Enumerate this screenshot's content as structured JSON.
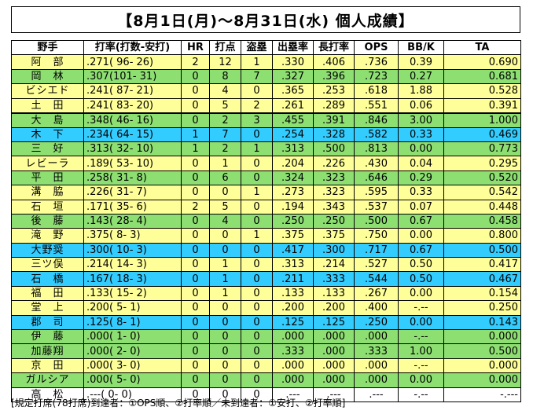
{
  "title": "【8月1日(月)〜8月31日(水) 個人成績】",
  "headers": [
    "野手",
    "打率(打数-安打)",
    "HR",
    "打点",
    "盗塁",
    "出塁率",
    "長打率",
    "OPS",
    "BB/K",
    "TA"
  ],
  "rows": [
    {
      "name": "阿　部",
      "avg": ".271( 96- 26)",
      "hr": "2",
      "rbi": "12",
      "sb": "1",
      "obp": ".330",
      "slg": ".406",
      "ops": ".736",
      "bbk": "0.39",
      "ta": "0.690",
      "color": "yellow"
    },
    {
      "name": "岡　林",
      "avg": ".307(101- 31)",
      "hr": "0",
      "rbi": "8",
      "sb": "7",
      "obp": ".327",
      "slg": ".396",
      "ops": ".723",
      "bbk": "0.27",
      "ta": "0.681",
      "color": "green"
    },
    {
      "name": "ビシエド",
      "avg": ".241( 87- 21)",
      "hr": "0",
      "rbi": "4",
      "sb": "0",
      "obp": ".365",
      "slg": ".253",
      "ops": ".618",
      "bbk": "1.88",
      "ta": "0.528",
      "color": "yellow"
    },
    {
      "name": "土　田",
      "avg": ".241( 83- 20)",
      "hr": "0",
      "rbi": "5",
      "sb": "2",
      "obp": ".261",
      "slg": ".289",
      "ops": ".551",
      "bbk": "0.06",
      "ta": "0.391",
      "color": "yellow"
    },
    {
      "name": "大　島",
      "avg": ".348( 46- 16)",
      "hr": "0",
      "rbi": "2",
      "sb": "3",
      "obp": ".455",
      "slg": ".391",
      "ops": ".846",
      "bbk": "3.00",
      "ta": "1.000",
      "color": "green"
    },
    {
      "name": "木　下",
      "avg": ".234( 64- 15)",
      "hr": "1",
      "rbi": "7",
      "sb": "0",
      "obp": ".254",
      "slg": ".328",
      "ops": ".582",
      "bbk": "0.33",
      "ta": "0.469",
      "color": "cyan"
    },
    {
      "name": "三　好",
      "avg": ".313( 32- 10)",
      "hr": "1",
      "rbi": "2",
      "sb": "1",
      "obp": ".313",
      "slg": ".500",
      "ops": ".813",
      "bbk": "0.00",
      "ta": "0.773",
      "color": "green"
    },
    {
      "name": "レビーラ",
      "avg": ".189( 53- 10)",
      "hr": "0",
      "rbi": "1",
      "sb": "0",
      "obp": ".204",
      "slg": ".226",
      "ops": ".430",
      "bbk": "0.04",
      "ta": "0.295",
      "color": "yellow"
    },
    {
      "name": "平　田",
      "avg": ".258( 31- 8)",
      "hr": "0",
      "rbi": "6",
      "sb": "0",
      "obp": ".324",
      "slg": ".323",
      "ops": ".646",
      "bbk": "0.29",
      "ta": "0.520",
      "color": "green"
    },
    {
      "name": "溝　脇",
      "avg": ".226( 31- 7)",
      "hr": "0",
      "rbi": "0",
      "sb": "1",
      "obp": ".273",
      "slg": ".323",
      "ops": ".595",
      "bbk": "0.33",
      "ta": "0.542",
      "color": "yellow"
    },
    {
      "name": "石　垣",
      "avg": ".171( 35- 6)",
      "hr": "2",
      "rbi": "5",
      "sb": "0",
      "obp": ".194",
      "slg": ".343",
      "ops": ".537",
      "bbk": "0.07",
      "ta": "0.448",
      "color": "yellow"
    },
    {
      "name": "後　藤",
      "avg": ".143( 28- 4)",
      "hr": "0",
      "rbi": "4",
      "sb": "0",
      "obp": ".250",
      "slg": ".250",
      "ops": ".500",
      "bbk": "0.67",
      "ta": "0.458",
      "color": "green"
    },
    {
      "name": "滝　野",
      "avg": ".375( 8- 3)",
      "hr": "0",
      "rbi": "0",
      "sb": "1",
      "obp": ".375",
      "slg": ".375",
      "ops": ".750",
      "bbk": "0.00",
      "ta": "0.800",
      "color": "yellow"
    },
    {
      "name": "大野奨",
      "avg": ".300( 10- 3)",
      "hr": "0",
      "rbi": "0",
      "sb": "0",
      "obp": ".417",
      "slg": ".300",
      "ops": ".717",
      "bbk": "0.67",
      "ta": "0.500",
      "color": "cyan"
    },
    {
      "name": "三ツ俣",
      "avg": ".214( 14- 3)",
      "hr": "0",
      "rbi": "1",
      "sb": "0",
      "obp": ".313",
      "slg": ".214",
      "ops": ".527",
      "bbk": "0.50",
      "ta": "0.417",
      "color": "yellow"
    },
    {
      "name": "石　橋",
      "avg": ".167( 18- 3)",
      "hr": "0",
      "rbi": "1",
      "sb": "0",
      "obp": ".211",
      "slg": ".333",
      "ops": ".544",
      "bbk": "0.50",
      "ta": "0.467",
      "color": "cyan"
    },
    {
      "name": "福　田",
      "avg": ".133( 15- 2)",
      "hr": "0",
      "rbi": "1",
      "sb": "0",
      "obp": ".133",
      "slg": ".133",
      "ops": ".267",
      "bbk": "0.00",
      "ta": "0.154",
      "color": "yellow"
    },
    {
      "name": "堂　上",
      "avg": ".200( 5- 1)",
      "hr": "0",
      "rbi": "0",
      "sb": "0",
      "obp": ".200",
      "slg": ".200",
      "ops": ".400",
      "bbk": "-.--",
      "ta": "0.250",
      "color": "yellow"
    },
    {
      "name": "郡　司",
      "avg": ".125( 8- 1)",
      "hr": "0",
      "rbi": "0",
      "sb": "0",
      "obp": ".125",
      "slg": ".125",
      "ops": ".250",
      "bbk": "0.00",
      "ta": "0.143",
      "color": "cyan"
    },
    {
      "name": "伊　藤",
      "avg": ".000( 1- 0)",
      "hr": "0",
      "rbi": "0",
      "sb": "0",
      "obp": ".000",
      "slg": ".000",
      "ops": ".000",
      "bbk": "-.--",
      "ta": "0.000",
      "color": "green"
    },
    {
      "name": "加藤翔",
      "avg": ".000( 2- 0)",
      "hr": "0",
      "rbi": "0",
      "sb": "0",
      "obp": ".333",
      "slg": ".000",
      "ops": ".333",
      "bbk": "1.00",
      "ta": "0.500",
      "color": "green"
    },
    {
      "name": "京　田",
      "avg": ".000( 3- 0)",
      "hr": "0",
      "rbi": "0",
      "sb": "0",
      "obp": ".000",
      "slg": ".000",
      "ops": ".000",
      "bbk": "-.--",
      "ta": "0.000",
      "color": "yellow"
    },
    {
      "name": "ガルシア",
      "avg": ".000( 5- 0)",
      "hr": "0",
      "rbi": "0",
      "sb": "0",
      "obp": ".000",
      "slg": ".000",
      "ops": ".000",
      "bbk": "0.00",
      "ta": "0.000",
      "color": "green"
    },
    {
      "name": "高　松",
      "avg": ".---( 0- 0)",
      "hr": "0",
      "rbi": "0",
      "sb": "0",
      "obp": ".---",
      "slg": ".---",
      "ops": ".---",
      "bbk": "-.--",
      "ta": "-.---",
      "color": "white"
    }
  ],
  "footnote": "[規定打席(78打席)到達者：①OPS順、②打率順／未到達者：①安打、②打率順]"
}
